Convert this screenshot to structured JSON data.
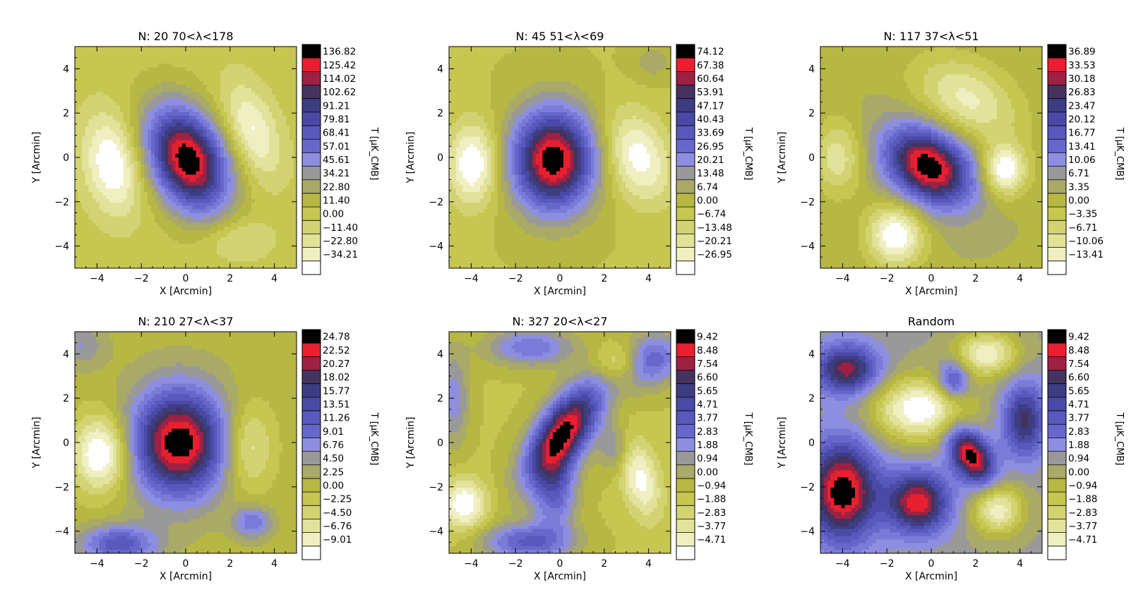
{
  "figure": {
    "caption": ""
  },
  "colorbar_colors": [
    "#ffffff",
    "#efefc2",
    "#e2e29a",
    "#d3d373",
    "#c6c651",
    "#b7b743",
    "#a9a968",
    "#999999",
    "#8e8ee0",
    "#7a7ad9",
    "#6767cb",
    "#5858bd",
    "#4a4aa6",
    "#3d3d82",
    "#44325f",
    "#9e2143",
    "#e81f2f",
    "#000000"
  ],
  "chart_data": [
    {
      "type": "heatmap",
      "title": "N: 20  70<λ<178",
      "xlabel": "X [Arcmin]",
      "ylabel": "Y [Arcmin]",
      "xlim": [
        -5,
        5
      ],
      "ylim": [
        -5,
        5
      ],
      "xticks": [
        "−4",
        "−2",
        "0",
        "2",
        "4"
      ],
      "yticks": [
        "4",
        "2",
        "0",
        "−2",
        "−4"
      ],
      "colorbar_label": "T [μK_CMB]",
      "colorbar_levels": [
        "136.82",
        "125.42",
        "114.02",
        "102.62",
        "91.21",
        "79.81",
        "68.41",
        "57.01",
        "45.61",
        "34.21",
        "22.80",
        "11.40",
        "0.00",
        "−11.40",
        "−22.80",
        "−34.21"
      ],
      "features": [
        {
          "x": 0.1,
          "y": -0.1,
          "sx": 1.15,
          "sy": 1.75,
          "angle": 25,
          "amp": 1.0
        },
        {
          "x": -3.3,
          "y": -0.3,
          "sx": 0.9,
          "sy": 1.6,
          "angle": 10,
          "amp": -0.35
        },
        {
          "x": 3.0,
          "y": 1.2,
          "sx": 0.8,
          "sy": 1.6,
          "angle": 20,
          "amp": -0.28
        },
        {
          "x": 2.3,
          "y": -3.7,
          "sx": 1.1,
          "sy": 0.7,
          "angle": 0,
          "amp": -0.15
        }
      ]
    },
    {
      "type": "heatmap",
      "title": "N: 45  51<λ<69",
      "xlabel": "X [Arcmin]",
      "ylabel": "Y [Arcmin]",
      "xlim": [
        -5,
        5
      ],
      "ylim": [
        -5,
        5
      ],
      "xticks": [
        "−4",
        "−2",
        "0",
        "2",
        "4"
      ],
      "yticks": [
        "4",
        "2",
        "0",
        "−2",
        "−4"
      ],
      "colorbar_label": "T [μK_CMB]",
      "colorbar_levels": [
        "74.12",
        "67.38",
        "60.64",
        "53.91",
        "47.17",
        "40.43",
        "33.69",
        "26.95",
        "20.21",
        "13.48",
        "6.74",
        "0.00",
        "−6.74",
        "−13.48",
        "−20.21",
        "−26.95"
      ],
      "features": [
        {
          "x": -0.3,
          "y": -0.1,
          "sx": 1.3,
          "sy": 1.6,
          "angle": 0,
          "amp": 1.0
        },
        {
          "x": -3.9,
          "y": -0.3,
          "sx": 0.8,
          "sy": 1.3,
          "angle": 0,
          "amp": -0.4
        },
        {
          "x": 3.5,
          "y": 0.0,
          "sx": 1.0,
          "sy": 1.5,
          "angle": 20,
          "amp": -0.35
        },
        {
          "x": 4.2,
          "y": 4.3,
          "sx": 0.7,
          "sy": 0.6,
          "angle": 0,
          "amp": 0.12
        }
      ]
    },
    {
      "type": "heatmap",
      "title": "N: 117  37<λ<51",
      "xlabel": "X [Arcmin]",
      "ylabel": "Y [Arcmin]",
      "xlim": [
        -5,
        5
      ],
      "ylim": [
        -5,
        5
      ],
      "xticks": [
        "−4",
        "−2",
        "0",
        "2",
        "4"
      ],
      "yticks": [
        "4",
        "2",
        "0",
        "−2",
        "−4"
      ],
      "colorbar_label": "T [μK_CMB]",
      "colorbar_levels": [
        "36.89",
        "33.53",
        "30.18",
        "26.83",
        "23.47",
        "20.12",
        "16.77",
        "13.41",
        "10.06",
        "6.71",
        "3.35",
        "0.00",
        "−3.35",
        "−6.71",
        "−10.06",
        "−13.41"
      ],
      "features": [
        {
          "x": -0.1,
          "y": -0.4,
          "sx": 1.5,
          "sy": 1.1,
          "angle": -35,
          "amp": 1.0
        },
        {
          "x": -1.6,
          "y": -3.5,
          "sx": 0.9,
          "sy": 1.0,
          "angle": 0,
          "amp": -0.5
        },
        {
          "x": 3.3,
          "y": -0.6,
          "sx": 0.7,
          "sy": 0.8,
          "angle": 0,
          "amp": -0.5
        },
        {
          "x": 1.6,
          "y": 2.6,
          "sx": 1.8,
          "sy": 1.2,
          "angle": -30,
          "amp": -0.35
        },
        {
          "x": -4.2,
          "y": 0.0,
          "sx": 0.8,
          "sy": 1.2,
          "angle": 0,
          "amp": -0.3
        }
      ]
    },
    {
      "type": "heatmap",
      "title": "N: 210  27<λ<37",
      "xlabel": "X [Arcmin]",
      "ylabel": "Y [Arcmin]",
      "xlim": [
        -5,
        5
      ],
      "ylim": [
        -5,
        5
      ],
      "xticks": [
        "−4",
        "−2",
        "0",
        "2",
        "4"
      ],
      "yticks": [
        "4",
        "2",
        "0",
        "−2",
        "−4"
      ],
      "colorbar_label": "T [μK_CMB]",
      "colorbar_levels": [
        "24.78",
        "22.52",
        "20.27",
        "18.02",
        "15.77",
        "13.51",
        "11.26",
        "9.01",
        "6.76",
        "4.50",
        "2.25",
        "0.00",
        "−2.25",
        "−4.50",
        "−6.76",
        "−9.01"
      ],
      "features": [
        {
          "x": -0.3,
          "y": 0.0,
          "sx": 1.5,
          "sy": 1.7,
          "angle": 0,
          "amp": 1.0
        },
        {
          "x": -3.8,
          "y": -0.5,
          "sx": 0.9,
          "sy": 1.2,
          "angle": 0,
          "amp": -0.5
        },
        {
          "x": 2.8,
          "y": -0.2,
          "sx": 0.8,
          "sy": 1.4,
          "angle": 0,
          "amp": -0.3
        },
        {
          "x": -3.0,
          "y": -4.6,
          "sx": 1.2,
          "sy": 0.6,
          "angle": 0,
          "amp": 0.5
        },
        {
          "x": 3.0,
          "y": -3.6,
          "sx": 0.6,
          "sy": 0.5,
          "angle": 0,
          "amp": 0.35
        },
        {
          "x": -4.8,
          "y": 4.4,
          "sx": 0.8,
          "sy": 0.7,
          "angle": 0,
          "amp": 0.2
        }
      ]
    },
    {
      "type": "heatmap",
      "title": "N: 327  20<λ<27",
      "xlabel": "X [Arcmin]",
      "ylabel": "Y [Arcmin]",
      "xlim": [
        -5,
        5
      ],
      "ylim": [
        -5,
        5
      ],
      "xticks": [
        "−4",
        "−2",
        "0",
        "2",
        "4"
      ],
      "yticks": [
        "4",
        "2",
        "0",
        "−2",
        "−4"
      ],
      "colorbar_label": "T [μK_CMB]",
      "colorbar_levels": [
        "9.42",
        "8.48",
        "7.54",
        "6.60",
        "5.65",
        "4.71",
        "3.77",
        "2.83",
        "1.88",
        "0.94",
        "0.00",
        "−0.94",
        "−1.88",
        "−2.83",
        "−3.77",
        "−4.71"
      ],
      "features": [
        {
          "x": 0.2,
          "y": 0.5,
          "sx": 0.8,
          "sy": 1.8,
          "angle": -35,
          "amp": 1.0
        },
        {
          "x": -0.2,
          "y": -2.2,
          "sx": 0.7,
          "sy": 1.3,
          "angle": 0,
          "amp": 0.45
        },
        {
          "x": 4.1,
          "y": 3.7,
          "sx": 1.0,
          "sy": 0.8,
          "angle": 30,
          "amp": 0.5
        },
        {
          "x": -1.3,
          "y": 4.3,
          "sx": 1.4,
          "sy": 0.6,
          "angle": 0,
          "amp": 0.4
        },
        {
          "x": -1.5,
          "y": -4.5,
          "sx": 1.4,
          "sy": 0.6,
          "angle": 0,
          "amp": 0.5
        },
        {
          "x": -4.8,
          "y": 2.0,
          "sx": 0.5,
          "sy": 1.5,
          "angle": 0,
          "amp": 0.3
        },
        {
          "x": 2.5,
          "y": -0.3,
          "sx": 0.5,
          "sy": 0.8,
          "angle": 0,
          "amp": 0.25
        },
        {
          "x": -4.3,
          "y": -2.8,
          "sx": 0.7,
          "sy": 0.8,
          "angle": 0,
          "amp": -0.4
        },
        {
          "x": 3.6,
          "y": -1.6,
          "sx": 0.6,
          "sy": 1.3,
          "angle": 15,
          "amp": -0.35
        },
        {
          "x": 2.7,
          "y": 3.6,
          "sx": 0.8,
          "sy": 0.6,
          "angle": 0,
          "amp": -0.3
        }
      ]
    },
    {
      "type": "heatmap",
      "title": "Random",
      "xlabel": "X [Arcmin]",
      "ylabel": "Y [Arcmin]",
      "xlim": [
        -5,
        5
      ],
      "ylim": [
        -5,
        5
      ],
      "xticks": [
        "−4",
        "−2",
        "0",
        "2",
        "4"
      ],
      "yticks": [
        "4",
        "2",
        "0",
        "−2",
        "−4"
      ],
      "colorbar_label": "T [μK_CMB]",
      "colorbar_levels": [
        "9.42",
        "8.48",
        "7.54",
        "6.60",
        "5.65",
        "4.71",
        "3.77",
        "2.83",
        "1.88",
        "0.94",
        "0.00",
        "−0.94",
        "−1.88",
        "−2.83",
        "−3.77",
        "−4.71"
      ],
      "features": [
        {
          "x": -4.0,
          "y": -2.2,
          "sx": 1.1,
          "sy": 1.6,
          "angle": 0,
          "amp": 0.45
        },
        {
          "x": -0.6,
          "y": -2.7,
          "sx": 1.0,
          "sy": 1.0,
          "angle": 0,
          "amp": 0.4
        },
        {
          "x": 1.8,
          "y": -0.6,
          "sx": 0.6,
          "sy": 1.0,
          "angle": 30,
          "amp": 0.45
        },
        {
          "x": -3.8,
          "y": 3.3,
          "sx": 1.0,
          "sy": 0.8,
          "angle": 0,
          "amp": 0.35
        },
        {
          "x": 4.2,
          "y": 1.0,
          "sx": 0.7,
          "sy": 1.2,
          "angle": 0,
          "amp": 0.3
        },
        {
          "x": 1.0,
          "y": 2.8,
          "sx": 0.5,
          "sy": 0.6,
          "angle": 0,
          "amp": 0.25
        },
        {
          "x": -0.5,
          "y": 1.5,
          "sx": 1.5,
          "sy": 1.0,
          "angle": 0,
          "amp": -0.3
        },
        {
          "x": 2.5,
          "y": 4.0,
          "sx": 1.0,
          "sy": 0.7,
          "angle": 0,
          "amp": -0.25
        },
        {
          "x": 3.0,
          "y": -3.0,
          "sx": 0.8,
          "sy": 0.8,
          "angle": 0,
          "amp": -0.25
        }
      ]
    }
  ]
}
